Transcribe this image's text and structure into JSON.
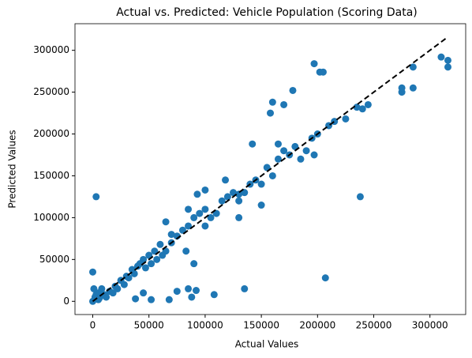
{
  "chart_data": {
    "type": "scatter",
    "title": "Actual vs. Predicted: Vehicle Population (Scoring Data)",
    "x_label": "Actual Values",
    "y_label": "Predicted Values",
    "color": "#1f77b4",
    "x": [
      0,
      2000,
      3000,
      0,
      1000,
      5000,
      10000,
      15000,
      20000,
      25000,
      30000,
      35000,
      40000,
      45000,
      50000,
      55000,
      60000,
      65000,
      70000,
      75000,
      80000,
      85000,
      90000,
      95000,
      100000,
      105000,
      110000,
      115000,
      120000,
      125000,
      130000,
      135000,
      140000,
      145000,
      150000,
      155000,
      160000,
      165000,
      170000,
      175000,
      180000,
      185000,
      190000,
      195000,
      200000,
      210000,
      215000,
      240000,
      245000,
      275000,
      275000,
      285000,
      285000,
      310000,
      316000,
      316000,
      93000,
      100000,
      68000,
      75000,
      85000,
      88000,
      92000,
      108000,
      135000,
      142000,
      158000,
      160000,
      170000,
      178000,
      197000,
      202000,
      205000,
      238000,
      207000,
      38000,
      45000,
      52000,
      65000,
      70000,
      85000,
      130000,
      150000,
      165000,
      197000,
      225000,
      235000,
      83000,
      90000,
      100000,
      118000,
      130000,
      5000,
      8000,
      12000,
      18000,
      22000,
      28000,
      32000,
      37000,
      42000,
      47000,
      52000,
      57000,
      62000,
      3000,
      6000
    ],
    "values": [
      0,
      5000,
      125000,
      35000,
      15000,
      10000,
      8000,
      12000,
      18000,
      25000,
      30000,
      38000,
      42000,
      50000,
      55000,
      60000,
      68000,
      60000,
      70000,
      78000,
      85000,
      90000,
      100000,
      105000,
      110000,
      100000,
      105000,
      120000,
      125000,
      130000,
      120000,
      130000,
      140000,
      145000,
      140000,
      160000,
      150000,
      170000,
      180000,
      175000,
      185000,
      170000,
      180000,
      195000,
      200000,
      210000,
      215000,
      230000,
      235000,
      250000,
      255000,
      255000,
      280000,
      292000,
      288000,
      280000,
      128000,
      133000,
      2000,
      12000,
      15000,
      5000,
      13000,
      8000,
      15000,
      188000,
      225000,
      238000,
      235000,
      252000,
      284000,
      274000,
      274000,
      125000,
      28000,
      3000,
      10000,
      2000,
      95000,
      80000,
      110000,
      100000,
      115000,
      188000,
      175000,
      218000,
      232000,
      60000,
      45000,
      90000,
      145000,
      128000,
      2000,
      15000,
      5000,
      10000,
      15000,
      20000,
      28000,
      33000,
      45000,
      40000,
      45000,
      50000,
      55000,
      8000,
      4000
    ],
    "line": {
      "x": [
        0,
        316000
      ],
      "values": [
        0,
        316000
      ],
      "color": "#000000"
    },
    "xlim": [
      -15800,
      331800
    ],
    "ylim": [
      -15800,
      331800
    ],
    "xticks": [
      0,
      50000,
      100000,
      150000,
      200000,
      250000,
      300000
    ],
    "yticks": [
      0,
      50000,
      100000,
      150000,
      200000,
      250000,
      300000
    ],
    "grid": false
  }
}
